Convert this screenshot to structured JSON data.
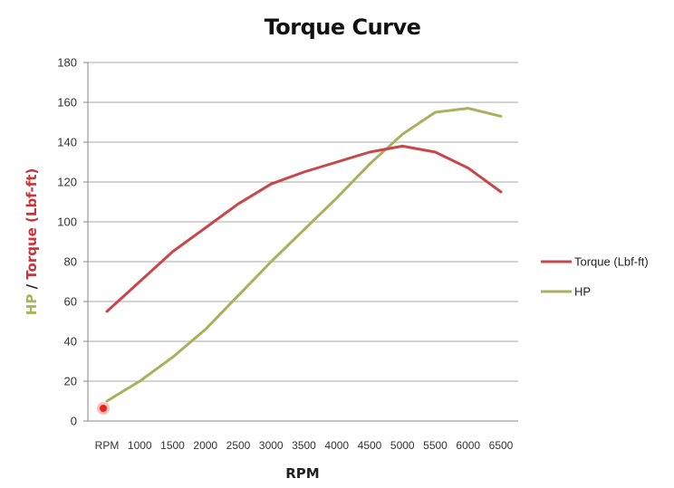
{
  "chart_data": {
    "type": "line",
    "title": "Torque Curve",
    "xlabel": "RPM",
    "ylabel_parts": [
      {
        "text": "HP",
        "color": "#a8b455"
      },
      {
        "text": " / ",
        "color": "#222222"
      },
      {
        "text": "Torque (Lbf-ft)",
        "color": "#c8343a"
      }
    ],
    "categories": [
      "RPM",
      "1000",
      "1500",
      "2000",
      "2500",
      "3000",
      "3500",
      "4000",
      "4500",
      "5000",
      "5500",
      "6000",
      "6500"
    ],
    "ylim": [
      0,
      180
    ],
    "yticks": [
      0,
      20,
      40,
      60,
      80,
      100,
      120,
      140,
      160,
      180
    ],
    "grid": true,
    "legend_position": "right",
    "series": [
      {
        "name": "Torque (Lbf-ft)",
        "color": "#c8474a",
        "values": [
          55,
          70,
          85,
          97,
          109,
          119,
          125,
          130,
          135,
          138,
          135,
          127,
          115
        ]
      },
      {
        "name": "HP",
        "color": "#a9b15c",
        "values": [
          10,
          20,
          32,
          46,
          63,
          80,
          96,
          112,
          129,
          144,
          155,
          157,
          153
        ]
      }
    ]
  }
}
